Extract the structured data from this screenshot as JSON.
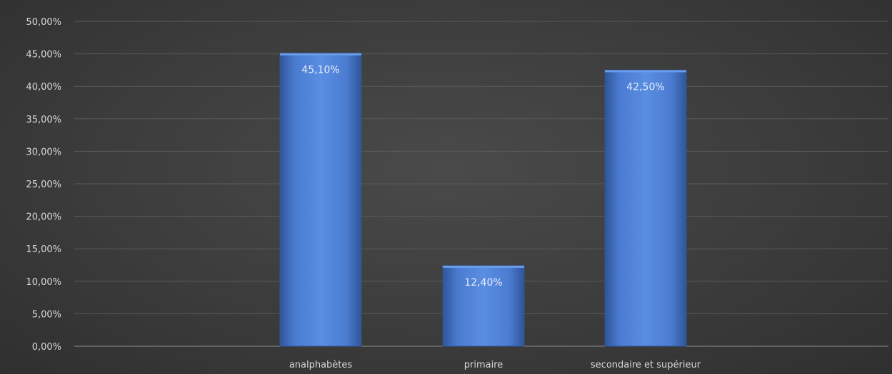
{
  "chart_data": {
    "type": "bar",
    "categories": [
      "analphabètes",
      "primaire",
      "secondaire et supérieur"
    ],
    "values": [
      45.1,
      12.4,
      42.5
    ],
    "data_labels": [
      "45,10%",
      "12,40%",
      "42,50%"
    ],
    "y_ticks": [
      "0,00%",
      "5,00%",
      "10,00%",
      "15,00%",
      "20,00%",
      "25,00%",
      "30,00%",
      "35,00%",
      "40,00%",
      "45,00%",
      "50,00%"
    ],
    "ylim": [
      0,
      50
    ],
    "y_step": 5,
    "grid": true,
    "legend": "none",
    "title": "",
    "xlabel": "",
    "ylabel": "",
    "colors": {
      "bar": "#4472c4",
      "bar_light": "#5b8fe0",
      "bar_dark": "#2f5597",
      "background": "#3c3c3c",
      "text": "#d9d9d9"
    }
  }
}
